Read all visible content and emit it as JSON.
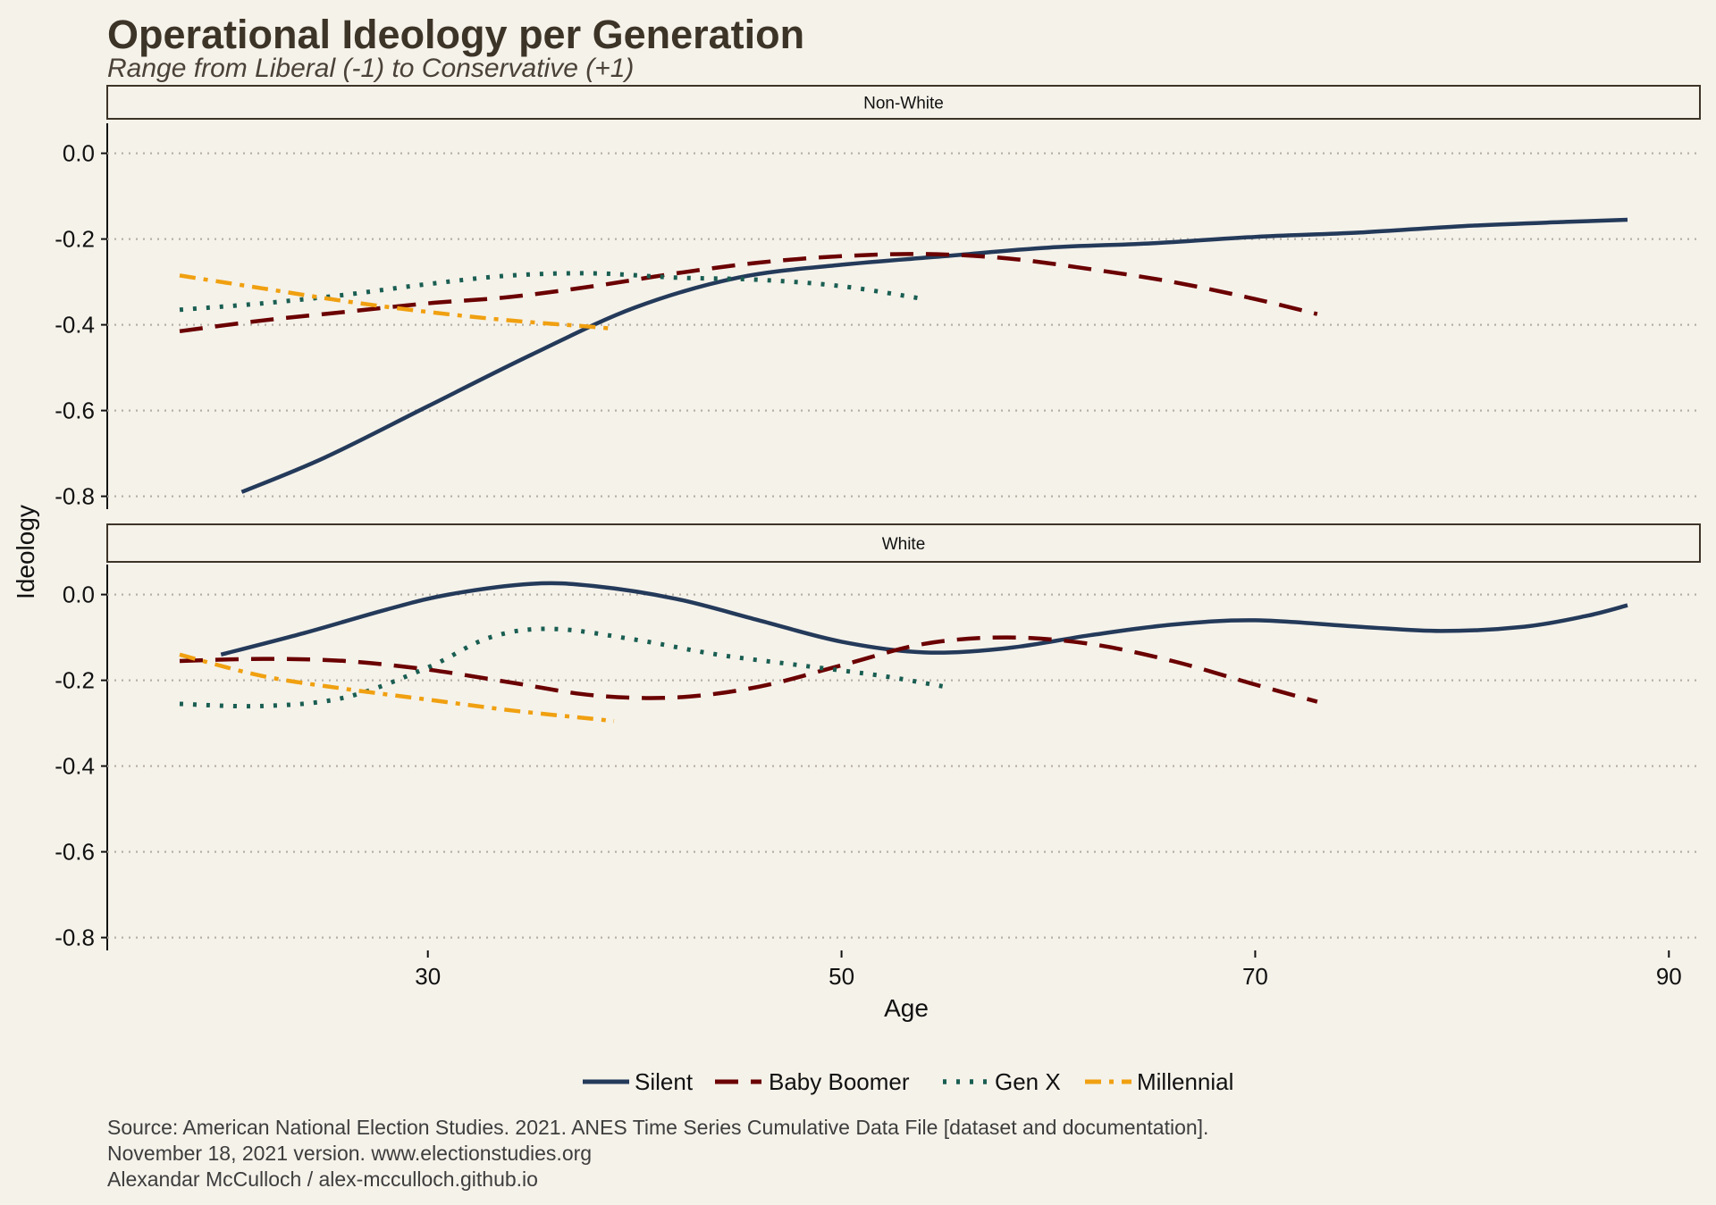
{
  "chart_data": {
    "type": "line",
    "title": "Operational Ideology per Generation",
    "subtitle": "Range from Liberal (-1) to Conservative (+1)",
    "xlabel": "Age",
    "ylabel": "Ideology",
    "xlim": [
      14.5,
      91.5
    ],
    "ylim": [
      -0.83,
      0.07
    ],
    "x_ticks": [
      30,
      50,
      70,
      90
    ],
    "y_ticks": [
      0.0,
      -0.2,
      -0.4,
      -0.6,
      -0.8
    ],
    "y_tick_labels": [
      "0.0",
      "-0.2",
      "-0.4",
      "-0.6",
      "-0.8"
    ],
    "grid": "horizontal dotted",
    "legend_position": "bottom",
    "colors": {
      "Silent": "#243a5a",
      "Baby Boomer": "#6b0000",
      "Gen X": "#1a5e52",
      "Millennial": "#f0a010"
    },
    "legend": [
      "Silent",
      "Baby Boomer",
      "Gen X",
      "Millennial"
    ],
    "panels": [
      {
        "label": "Non-White",
        "series": [
          {
            "name": "Silent",
            "points": [
              [
                21,
                -0.79
              ],
              [
                25,
                -0.71
              ],
              [
                30,
                -0.59
              ],
              [
                35,
                -0.47
              ],
              [
                40,
                -0.36
              ],
              [
                45,
                -0.29
              ],
              [
                50,
                -0.26
              ],
              [
                55,
                -0.24
              ],
              [
                60,
                -0.22
              ],
              [
                65,
                -0.21
              ],
              [
                70,
                -0.195
              ],
              [
                75,
                -0.185
              ],
              [
                80,
                -0.17
              ],
              [
                85,
                -0.16
              ],
              [
                88,
                -0.155
              ]
            ]
          },
          {
            "name": "Baby Boomer",
            "points": [
              [
                18,
                -0.415
              ],
              [
                22,
                -0.39
              ],
              [
                26,
                -0.37
              ],
              [
                30,
                -0.35
              ],
              [
                34,
                -0.335
              ],
              [
                38,
                -0.31
              ],
              [
                42,
                -0.28
              ],
              [
                46,
                -0.255
              ],
              [
                50,
                -0.24
              ],
              [
                54,
                -0.235
              ],
              [
                58,
                -0.245
              ],
              [
                62,
                -0.27
              ],
              [
                66,
                -0.3
              ],
              [
                70,
                -0.34
              ],
              [
                73,
                -0.375
              ]
            ]
          },
          {
            "name": "Gen X",
            "points": [
              [
                18,
                -0.365
              ],
              [
                22,
                -0.35
              ],
              [
                26,
                -0.33
              ],
              [
                30,
                -0.305
              ],
              [
                34,
                -0.285
              ],
              [
                38,
                -0.28
              ],
              [
                42,
                -0.29
              ],
              [
                46,
                -0.295
              ],
              [
                50,
                -0.31
              ],
              [
                54,
                -0.34
              ]
            ]
          },
          {
            "name": "Millennial",
            "points": [
              [
                18,
                -0.285
              ],
              [
                22,
                -0.315
              ],
              [
                26,
                -0.345
              ],
              [
                30,
                -0.37
              ],
              [
                34,
                -0.39
              ],
              [
                38,
                -0.405
              ],
              [
                39,
                -0.41
              ]
            ]
          }
        ]
      },
      {
        "label": "White",
        "series": [
          {
            "name": "Silent",
            "points": [
              [
                20,
                -0.14
              ],
              [
                24,
                -0.09
              ],
              [
                28,
                -0.035
              ],
              [
                31,
                0.0
              ],
              [
                35,
                0.025
              ],
              [
                38,
                0.02
              ],
              [
                42,
                -0.01
              ],
              [
                46,
                -0.06
              ],
              [
                50,
                -0.11
              ],
              [
                54,
                -0.135
              ],
              [
                58,
                -0.125
              ],
              [
                62,
                -0.095
              ],
              [
                66,
                -0.07
              ],
              [
                70,
                -0.06
              ],
              [
                75,
                -0.075
              ],
              [
                79,
                -0.085
              ],
              [
                83,
                -0.075
              ],
              [
                86,
                -0.05
              ],
              [
                88,
                -0.025
              ]
            ]
          },
          {
            "name": "Baby Boomer",
            "points": [
              [
                18,
                -0.155
              ],
              [
                22,
                -0.15
              ],
              [
                26,
                -0.155
              ],
              [
                30,
                -0.175
              ],
              [
                34,
                -0.205
              ],
              [
                38,
                -0.235
              ],
              [
                42,
                -0.24
              ],
              [
                46,
                -0.215
              ],
              [
                50,
                -0.165
              ],
              [
                54,
                -0.115
              ],
              [
                58,
                -0.1
              ],
              [
                62,
                -0.115
              ],
              [
                66,
                -0.155
              ],
              [
                70,
                -0.21
              ],
              [
                73,
                -0.25
              ]
            ]
          },
          {
            "name": "Gen X",
            "points": [
              [
                18,
                -0.255
              ],
              [
                22,
                -0.26
              ],
              [
                26,
                -0.24
              ],
              [
                30,
                -0.17
              ],
              [
                33,
                -0.1
              ],
              [
                36,
                -0.08
              ],
              [
                40,
                -0.105
              ],
              [
                44,
                -0.14
              ],
              [
                48,
                -0.165
              ],
              [
                52,
                -0.19
              ],
              [
                55,
                -0.215
              ]
            ]
          },
          {
            "name": "Millennial",
            "points": [
              [
                18,
                -0.14
              ],
              [
                22,
                -0.19
              ],
              [
                26,
                -0.22
              ],
              [
                30,
                -0.245
              ],
              [
                34,
                -0.27
              ],
              [
                38,
                -0.29
              ],
              [
                39,
                -0.295
              ]
            ]
          }
        ]
      }
    ]
  },
  "caption": {
    "lines": [
      "Source: American National Election Studies. 2021. ANES Time Series Cumulative Data File [dataset and documentation].",
      "November 18, 2021 version. www.electionstudies.org",
      "Alexandar McCulloch / alex-mcculloch.github.io"
    ]
  }
}
